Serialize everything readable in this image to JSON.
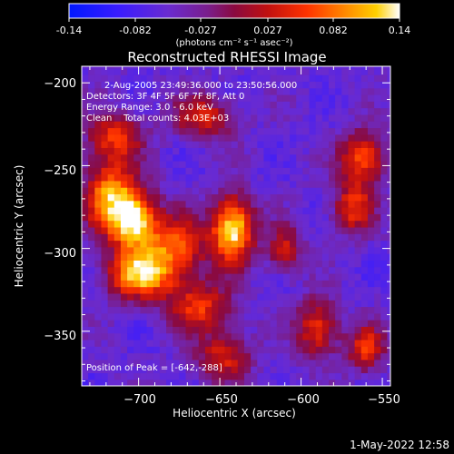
{
  "colorbar": {
    "ticks": [
      "-0.14",
      "-0.082",
      "-0.027",
      "0.027",
      "0.082",
      "0.14"
    ],
    "unit_label": "(photons cm⁻² s⁻¹ asec⁻²)",
    "range": [
      -0.14,
      0.14
    ]
  },
  "footer": {
    "timestamp": "1-May-2022 12:58"
  },
  "chart_data": {
    "type": "heatmap",
    "title": "Reconstructed RHESSI Image",
    "xlabel": "Heliocentric X (arcsec)",
    "ylabel": "Heliocentric Y (arcsec)",
    "xlim": [
      -735,
      -545
    ],
    "ylim": [
      -383,
      -190
    ],
    "x_ticks": [
      -700,
      -650,
      -600,
      -550
    ],
    "y_ticks": [
      -200,
      -250,
      -300,
      -350
    ],
    "x_tick_labels": [
      "−700",
      "−650",
      "−600",
      "−550"
    ],
    "y_tick_labels": [
      "−200",
      "−250",
      "−300",
      "−350"
    ],
    "colormap": "IDL Red-Temperature-like (blue → purple → red → orange → white)",
    "annotations": [
      "2-Aug-2005 23:49:36.000 to 23:50:56.000",
      "Detectors: 3F 4F 5F 6F 7F 8F, Att 0",
      "Energy Range: 3.0 - 6.0 keV",
      "Clean    Total counts: 4.03E+03"
    ],
    "peak_label": "Position of Peak = [-642,-288]",
    "peak_position": [
      -642,
      -288
    ],
    "sources": [
      {
        "x": -642,
        "y": -288,
        "peak": 0.14,
        "sigma_x": 9,
        "sigma_y": 14
      },
      {
        "x": -703,
        "y": -283,
        "peak": 0.12,
        "sigma_x": 10,
        "sigma_y": 13
      },
      {
        "x": -718,
        "y": -268,
        "peak": 0.09,
        "sigma_x": 11,
        "sigma_y": 15
      },
      {
        "x": -700,
        "y": -316,
        "peak": 0.1,
        "sigma_x": 14,
        "sigma_y": 10
      },
      {
        "x": -678,
        "y": -300,
        "peak": 0.07,
        "sigma_x": 14,
        "sigma_y": 14
      },
      {
        "x": -715,
        "y": -232,
        "peak": 0.05,
        "sigma_x": 12,
        "sigma_y": 10
      },
      {
        "x": -660,
        "y": -220,
        "peak": 0.04,
        "sigma_x": 14,
        "sigma_y": 9
      },
      {
        "x": -662,
        "y": -335,
        "peak": 0.05,
        "sigma_x": 14,
        "sigma_y": 10
      },
      {
        "x": -648,
        "y": -365,
        "peak": 0.04,
        "sigma_x": 12,
        "sigma_y": 10
      },
      {
        "x": -562,
        "y": -245,
        "peak": 0.07,
        "sigma_x": 10,
        "sigma_y": 11
      },
      {
        "x": -568,
        "y": -275,
        "peak": 0.05,
        "sigma_x": 9,
        "sigma_y": 11
      },
      {
        "x": -590,
        "y": -348,
        "peak": 0.06,
        "sigma_x": 9,
        "sigma_y": 12
      },
      {
        "x": -560,
        "y": -360,
        "peak": 0.05,
        "sigma_x": 8,
        "sigma_y": 10
      },
      {
        "x": -610,
        "y": -300,
        "peak": 0.03,
        "sigma_x": 8,
        "sigma_y": 10
      }
    ],
    "background_level": -0.06
  }
}
